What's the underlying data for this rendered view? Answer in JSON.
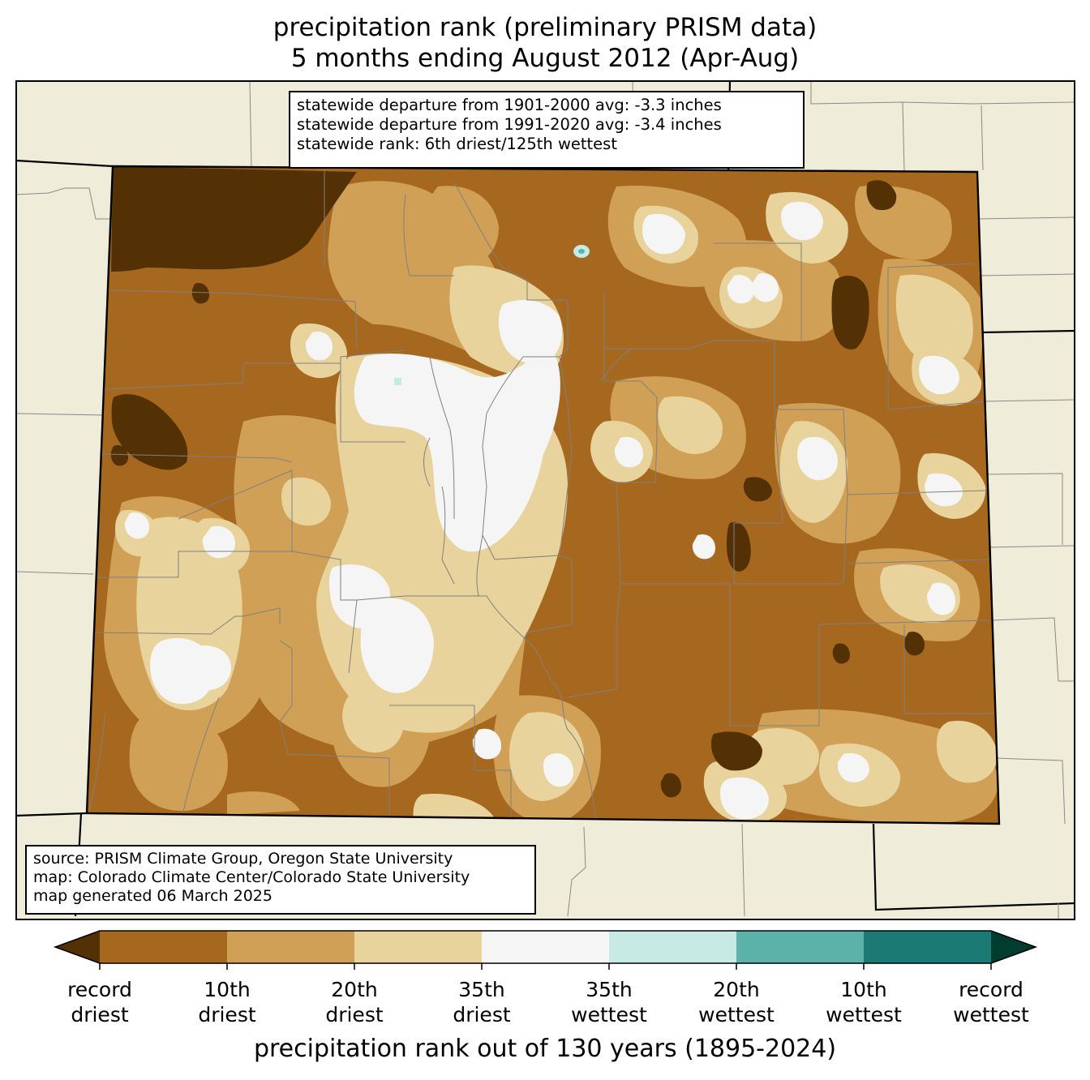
{
  "title": {
    "line1": "precipitation rank (preliminary PRISM data)",
    "line2": "5 months ending August 2012 (Apr-Aug)"
  },
  "stats": {
    "line1": "statewide departure from 1901-2000 avg: -3.3 inches",
    "line2": "statewide departure from 1991-2020 avg: -3.4 inches",
    "line3": "statewide rank: 6th driest/125th wettest"
  },
  "source": {
    "line1": "source: PRISM Climate Group, Oregon State University",
    "line2": "map: Colorado Climate Center/Colorado State University",
    "line3": "map generated 06 March 2025"
  },
  "colorbar": {
    "title": "precipitation rank out of 130 years (1895-2024)",
    "ticks": [
      {
        "line1": "record",
        "line2": "driest"
      },
      {
        "line1": "10th",
        "line2": "driest"
      },
      {
        "line1": "20th",
        "line2": "driest"
      },
      {
        "line1": "35th",
        "line2": "driest"
      },
      {
        "line1": "35th",
        "line2": "wettest"
      },
      {
        "line1": "20th",
        "line2": "wettest"
      },
      {
        "line1": "10th",
        "line2": "wettest"
      },
      {
        "line1": "record",
        "line2": "wettest"
      }
    ],
    "colors": {
      "under": "#543005",
      "bins": [
        "#a6681f",
        "#cfa055",
        "#e8d39d",
        "#f4f5f4",
        "#c7eae4",
        "#5ab2a8",
        "#1b7b74"
      ],
      "over": "#003c30"
    }
  },
  "map_colors": {
    "background": "#efedda",
    "county_lines": "#808080",
    "state_lines": "#000000"
  }
}
